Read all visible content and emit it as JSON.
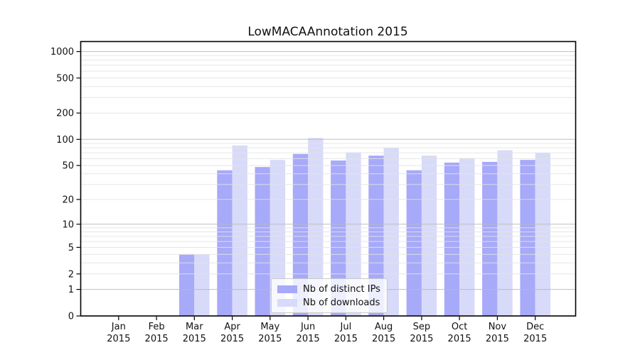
{
  "chart_data": {
    "type": "bar",
    "title": "LowMACAAnnotation 2015",
    "categories": [
      "Jan",
      "Feb",
      "Mar",
      "Apr",
      "May",
      "Jun",
      "Jul",
      "Aug",
      "Sep",
      "Oct",
      "Nov",
      "Dec"
    ],
    "year_label": "2015",
    "series": [
      {
        "name": "Nb of distinct IPs",
        "color": "#a7a9f9",
        "values": [
          0,
          0,
          4,
          44,
          48,
          68,
          57,
          65,
          44,
          54,
          55,
          58
        ]
      },
      {
        "name": "Nb of downloads",
        "color": "#d8daf9",
        "values": [
          0,
          0,
          4,
          85,
          58,
          104,
          71,
          80,
          65,
          61,
          75,
          70
        ]
      }
    ],
    "y_ticks": [
      0,
      1,
      2,
      5,
      10,
      20,
      50,
      100,
      200,
      500,
      1000
    ],
    "y_scale": "log1p",
    "y_max": 1300,
    "grid": "both",
    "legend_position": "lower center",
    "colors": {
      "axis": "#000000",
      "grid_major": "#bbbbbb",
      "grid_minor": "#e3e3e3",
      "background": "#ffffff",
      "text": "#111111"
    }
  }
}
